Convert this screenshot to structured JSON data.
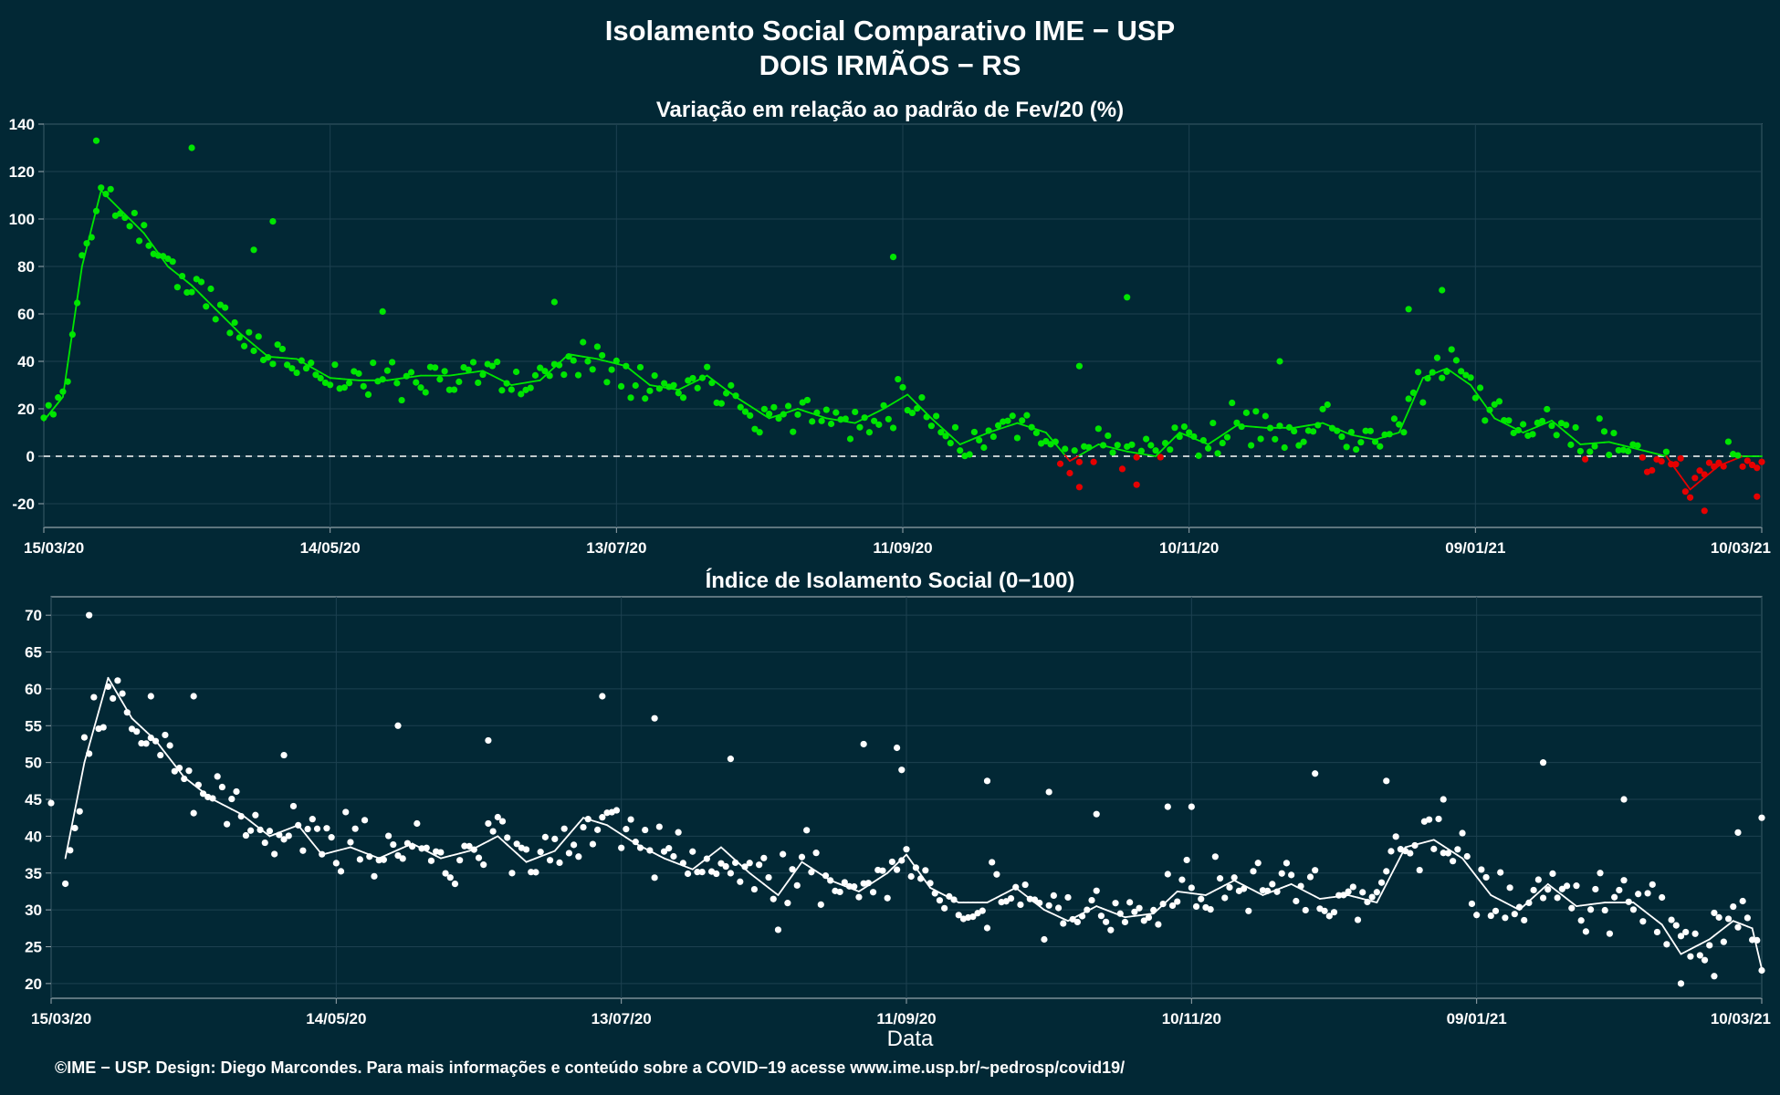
{
  "title_line1": "Isolamento Social Comparativo IME − USP",
  "title_line2": "DOIS IRMÃOS − RS",
  "xlabel": "Data",
  "footer": "©IME − USP. Design: Diego Marcondes. Para mais informações e conteúdo sobre a COVID−19 acesse www.ime.usp.br/~pedrosp/covid19/",
  "colors": {
    "background": "#022835",
    "grid": "#1d4150",
    "panel_border": "#9aa8ae",
    "positive": "#00e600",
    "negative": "#e60000",
    "index": "#ffffff"
  },
  "chart_data": [
    {
      "type": "scatter",
      "title": "Variação em relação ao padrão de Fev/20 (%)",
      "x_start": "2020-03-15",
      "x_end": "2021-03-10",
      "x_tick_labels": [
        "15/03/20",
        "14/05/20",
        "13/07/20",
        "11/09/20",
        "10/11/20",
        "09/01/21",
        "10/03/21"
      ],
      "ylim": [
        -30,
        140
      ],
      "y_ticks": [
        -20,
        0,
        20,
        40,
        60,
        80,
        100,
        120,
        140
      ],
      "reference_line": 0,
      "grid": true,
      "moving_average_line": true,
      "anchors": [
        [
          "2020-03-15",
          15
        ],
        [
          "2020-03-19",
          25
        ],
        [
          "2020-03-23",
          80
        ],
        [
          "2020-03-27",
          112
        ],
        [
          "2020-04-01",
          102
        ],
        [
          "2020-04-05",
          94
        ],
        [
          "2020-04-10",
          80
        ],
        [
          "2020-04-15",
          72
        ],
        [
          "2020-04-20",
          62
        ],
        [
          "2020-04-25",
          52
        ],
        [
          "2020-05-01",
          42
        ],
        [
          "2020-05-07",
          41
        ],
        [
          "2020-05-14",
          33
        ],
        [
          "2020-05-20",
          32
        ],
        [
          "2020-05-26",
          32
        ],
        [
          "2020-06-02",
          34
        ],
        [
          "2020-06-08",
          34
        ],
        [
          "2020-06-15",
          36
        ],
        [
          "2020-06-21",
          30
        ],
        [
          "2020-06-27",
          32
        ],
        [
          "2020-07-03",
          43
        ],
        [
          "2020-07-09",
          41
        ],
        [
          "2020-07-15",
          38
        ],
        [
          "2020-07-20",
          30
        ],
        [
          "2020-07-26",
          28
        ],
        [
          "2020-08-01",
          34
        ],
        [
          "2020-08-07",
          25
        ],
        [
          "2020-08-14",
          16
        ],
        [
          "2020-08-20",
          20
        ],
        [
          "2020-08-26",
          16
        ],
        [
          "2020-09-01",
          14
        ],
        [
          "2020-09-07",
          20
        ],
        [
          "2020-09-12",
          26
        ],
        [
          "2020-09-17",
          16
        ],
        [
          "2020-09-23",
          5
        ],
        [
          "2020-09-29",
          10
        ],
        [
          "2020-10-05",
          14
        ],
        [
          "2020-10-11",
          10
        ],
        [
          "2020-10-16",
          -2
        ],
        [
          "2020-10-22",
          5
        ],
        [
          "2020-10-28",
          2
        ],
        [
          "2020-11-03",
          0
        ],
        [
          "2020-11-08",
          10
        ],
        [
          "2020-11-14",
          5
        ],
        [
          "2020-11-20",
          13
        ],
        [
          "2020-11-26",
          12
        ],
        [
          "2020-12-02",
          12
        ],
        [
          "2020-12-08",
          14
        ],
        [
          "2020-12-14",
          9
        ],
        [
          "2020-12-19",
          7
        ],
        [
          "2020-12-24",
          10
        ],
        [
          "2020-12-29",
          33
        ],
        [
          "2021-01-03",
          37
        ],
        [
          "2021-01-08",
          30
        ],
        [
          "2021-01-13",
          16
        ],
        [
          "2021-01-19",
          10
        ],
        [
          "2021-01-25",
          15
        ],
        [
          "2021-01-31",
          5
        ],
        [
          "2021-02-06",
          6
        ],
        [
          "2021-02-12",
          3
        ],
        [
          "2021-02-18",
          0
        ],
        [
          "2021-02-23",
          -14
        ],
        [
          "2021-03-01",
          -4
        ],
        [
          "2021-03-06",
          0
        ],
        [
          "2021-03-10",
          0
        ]
      ],
      "outliers": [
        [
          "2020-03-26",
          133
        ],
        [
          "2020-04-15",
          130
        ],
        [
          "2020-05-02",
          99
        ],
        [
          "2020-04-28",
          87
        ],
        [
          "2020-05-25",
          61
        ],
        [
          "2020-06-30",
          65
        ],
        [
          "2020-09-09",
          84
        ],
        [
          "2020-10-18",
          38
        ],
        [
          "2020-10-28",
          67
        ],
        [
          "2020-12-26",
          62
        ],
        [
          "2021-01-02",
          70
        ],
        [
          "2020-11-29",
          40
        ],
        [
          "2020-10-18",
          -13
        ],
        [
          "2020-10-30",
          -12
        ],
        [
          "2021-02-26",
          -23
        ],
        [
          "2021-03-09",
          -17
        ]
      ]
    },
    {
      "type": "scatter",
      "title": "Índice de Isolamento Social (0−100)",
      "x_start": "2020-03-15",
      "x_end": "2021-03-10",
      "x_tick_labels": [
        "15/03/20",
        "14/05/20",
        "13/07/20",
        "11/09/20",
        "10/11/20",
        "09/01/21",
        "10/03/21"
      ],
      "ylim": [
        18,
        72.5
      ],
      "y_ticks": [
        20,
        25,
        30,
        35,
        40,
        45,
        50,
        55,
        60,
        65,
        70
      ],
      "grid": true,
      "moving_average_line": true,
      "anchors": [
        [
          "2020-03-18",
          37
        ],
        [
          "2020-03-22",
          50
        ],
        [
          "2020-03-27",
          61.5
        ],
        [
          "2020-04-01",
          56
        ],
        [
          "2020-04-06",
          53
        ],
        [
          "2020-04-12",
          48
        ],
        [
          "2020-04-18",
          45
        ],
        [
          "2020-04-24",
          43
        ],
        [
          "2020-04-30",
          40
        ],
        [
          "2020-05-06",
          41.5
        ],
        [
          "2020-05-11",
          37.5
        ],
        [
          "2020-05-17",
          38.5
        ],
        [
          "2020-05-23",
          37
        ],
        [
          "2020-05-30",
          39
        ],
        [
          "2020-06-05",
          37
        ],
        [
          "2020-06-11",
          38
        ],
        [
          "2020-06-17",
          40
        ],
        [
          "2020-06-23",
          36.5
        ],
        [
          "2020-06-29",
          38
        ],
        [
          "2020-07-05",
          42.5
        ],
        [
          "2020-07-10",
          41.5
        ],
        [
          "2020-07-16",
          39
        ],
        [
          "2020-07-22",
          37
        ],
        [
          "2020-07-28",
          35.5
        ],
        [
          "2020-08-03",
          38.5
        ],
        [
          "2020-08-09",
          35
        ],
        [
          "2020-08-15",
          32
        ],
        [
          "2020-08-20",
          36.5
        ],
        [
          "2020-08-26",
          34
        ],
        [
          "2020-09-01",
          32.5
        ],
        [
          "2020-09-07",
          35
        ],
        [
          "2020-09-11",
          37.5
        ],
        [
          "2020-09-16",
          33
        ],
        [
          "2020-09-22",
          31
        ],
        [
          "2020-09-28",
          31
        ],
        [
          "2020-10-04",
          33
        ],
        [
          "2020-10-10",
          30
        ],
        [
          "2020-10-15",
          28.5
        ],
        [
          "2020-10-21",
          30.5
        ],
        [
          "2020-10-27",
          29
        ],
        [
          "2020-11-02",
          29.5
        ],
        [
          "2020-11-07",
          32.5
        ],
        [
          "2020-11-13",
          32
        ],
        [
          "2020-11-19",
          34
        ],
        [
          "2020-11-25",
          32
        ],
        [
          "2020-12-01",
          33.5
        ],
        [
          "2020-12-07",
          31.5
        ],
        [
          "2020-12-13",
          32
        ],
        [
          "2020-12-19",
          31
        ],
        [
          "2020-12-25",
          38.5
        ],
        [
          "2020-12-31",
          39.5
        ],
        [
          "2021-01-06",
          37
        ],
        [
          "2021-01-12",
          32
        ],
        [
          "2021-01-18",
          30
        ],
        [
          "2021-01-24",
          33.5
        ],
        [
          "2021-01-30",
          30.5
        ],
        [
          "2021-02-05",
          31
        ],
        [
          "2021-02-11",
          31
        ],
        [
          "2021-02-17",
          28
        ],
        [
          "2021-02-21",
          24
        ],
        [
          "2021-02-27",
          26
        ],
        [
          "2021-03-04",
          28.5
        ],
        [
          "2021-03-08",
          27.5
        ],
        [
          "2021-03-10",
          22
        ]
      ],
      "outliers": [
        [
          "2020-03-15",
          44.5
        ],
        [
          "2020-03-23",
          70
        ],
        [
          "2020-04-05",
          59
        ],
        [
          "2020-04-14",
          59
        ],
        [
          "2020-05-03",
          51
        ],
        [
          "2020-05-27",
          55
        ],
        [
          "2020-06-15",
          53
        ],
        [
          "2020-07-09",
          59
        ],
        [
          "2020-07-20",
          56
        ],
        [
          "2020-08-05",
          50.5
        ],
        [
          "2020-09-02",
          52.5
        ],
        [
          "2020-09-09",
          52
        ],
        [
          "2020-09-10",
          49
        ],
        [
          "2020-09-28",
          47.5
        ],
        [
          "2020-10-11",
          46
        ],
        [
          "2020-10-21",
          43
        ],
        [
          "2020-11-05",
          44
        ],
        [
          "2020-11-10",
          44
        ],
        [
          "2020-12-06",
          48.5
        ],
        [
          "2020-12-21",
          47.5
        ],
        [
          "2021-01-02",
          45
        ],
        [
          "2021-01-23",
          50
        ],
        [
          "2021-02-09",
          45
        ],
        [
          "2021-02-21",
          20
        ],
        [
          "2021-03-05",
          40.5
        ],
        [
          "2021-03-10",
          42.5
        ],
        [
          "2021-02-28",
          21
        ]
      ]
    }
  ]
}
